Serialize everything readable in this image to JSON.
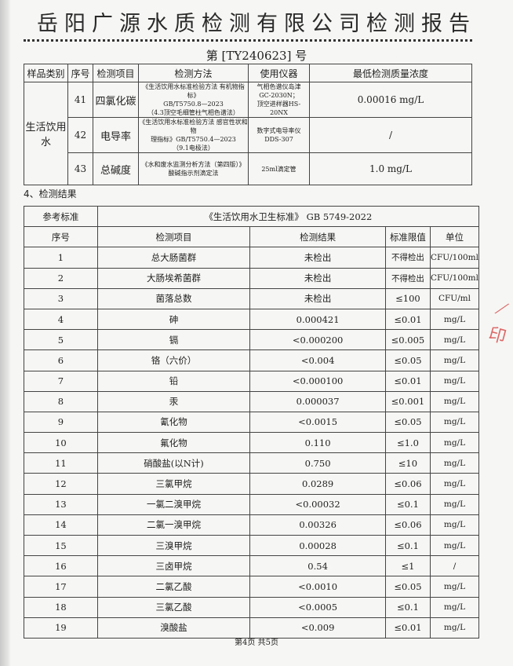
{
  "title": "岳阳广源水质检测有限公司检测报告",
  "report_no": "第 [TY240623] 号",
  "table1": {
    "headers": [
      "样品类别",
      "序号",
      "检测项目",
      "检测方法",
      "使用仪器",
      "最低检测质量浓度"
    ],
    "category": "生活饮用水",
    "rows": [
      {
        "no": "41",
        "item": "四氯化碳",
        "method": [
          "《生活饮用水标准检验方法 有机物指标》",
          "GB/T5750.8—2023",
          "（4.3顶空毛细管柱气相色谱法）"
        ],
        "instrument": [
          "气相色谱仪岛津",
          "GC-2030N；",
          "顶空进样器HS-20NX"
        ],
        "min": "0.00016 mg/L"
      },
      {
        "no": "42",
        "item": "电导率",
        "method": [
          "《生活饮用水标准检验方法 感官性状和物",
          "理指标》GB/T5750.4—2023",
          "（9.1电极法）"
        ],
        "instrument": [
          "数字式电导率仪",
          "DDS-307"
        ],
        "min": "/"
      },
      {
        "no": "43",
        "item": "总碱度",
        "method": [
          "《水和废水监测分析方法（第四版）》",
          "酸碱指示剂滴定法"
        ],
        "instrument": [
          "25ml滴定管"
        ],
        "min": "1.0 mg/L"
      }
    ]
  },
  "section_title": "4、检测结果",
  "table2": {
    "ref_label": "参考标准",
    "ref_value": "《生活饮用水卫生标准》 GB 5749-2022",
    "headers": [
      "序号",
      "检测项目",
      "检测结果",
      "标准限值",
      "单位"
    ],
    "rows": [
      [
        "1",
        "总大肠菌群",
        "未检出",
        "不得检出",
        "CFU/100ml"
      ],
      [
        "2",
        "大肠埃希菌群",
        "未检出",
        "不得检出",
        "CFU/100ml"
      ],
      [
        "3",
        "菌落总数",
        "未检出",
        "≤100",
        "CFU/ml"
      ],
      [
        "4",
        "砷",
        "0.000421",
        "≤0.01",
        "mg/L"
      ],
      [
        "5",
        "镉",
        "<0.000200",
        "≤0.005",
        "mg/L"
      ],
      [
        "6",
        "铬（六价）",
        "<0.004",
        "≤0.05",
        "mg/L"
      ],
      [
        "7",
        "铅",
        "<0.000100",
        "≤0.01",
        "mg/L"
      ],
      [
        "8",
        "汞",
        "0.000037",
        "≤0.001",
        "mg/L"
      ],
      [
        "9",
        "氰化物",
        "<0.0015",
        "≤0.05",
        "mg/L"
      ],
      [
        "10",
        "氟化物",
        "0.110",
        "≤1.0",
        "mg/L"
      ],
      [
        "11",
        "硝酸盐(以N计)",
        "0.750",
        "≤10",
        "mg/L"
      ],
      [
        "12",
        "三氯甲烷",
        "0.0289",
        "≤0.06",
        "mg/L"
      ],
      [
        "13",
        "一氯二溴甲烷",
        "<0.00032",
        "≤0.1",
        "mg/L"
      ],
      [
        "14",
        "二氯一溴甲烷",
        "0.00326",
        "≤0.06",
        "mg/L"
      ],
      [
        "15",
        "三溴甲烷",
        "0.00028",
        "≤0.1",
        "mg/L"
      ],
      [
        "16",
        "三卤甲烷",
        "0.54",
        "≤1",
        "/"
      ],
      [
        "17",
        "二氯乙酸",
        "<0.0010",
        "≤0.05",
        "mg/L"
      ],
      [
        "18",
        "三氯乙酸",
        "<0.0005",
        "≤0.1",
        "mg/L"
      ],
      [
        "19",
        "溴酸盐",
        "<0.009",
        "≤0.01",
        "mg/L"
      ]
    ]
  },
  "footer": "第4页 共5页",
  "stamp_color": "#d23a3a"
}
